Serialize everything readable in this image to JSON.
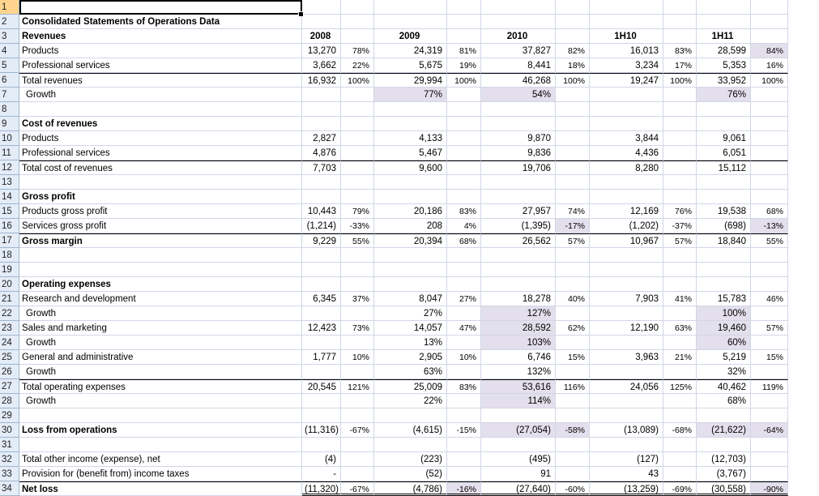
{
  "rows": [
    {
      "n": "1",
      "label": "",
      "style": "",
      "cells": [
        "",
        "",
        "",
        "",
        "",
        "",
        "",
        "",
        "",
        ""
      ],
      "hl": []
    },
    {
      "n": "2",
      "label": "Consolidated Statements of Operations Data",
      "style": "bold",
      "cells": [
        "",
        "",
        "",
        "",
        "",
        "",
        "",
        "",
        "",
        ""
      ],
      "hl": []
    },
    {
      "n": "3",
      "label": "Revenues",
      "style": "bold",
      "cells": [
        "2008",
        "",
        "2009",
        "",
        "2010",
        "",
        "1H10",
        "",
        "1H11",
        ""
      ],
      "hl": [],
      "header": true
    },
    {
      "n": "4",
      "label": "Products",
      "style": "",
      "cells": [
        "13,270",
        "78%",
        "24,319",
        "81%",
        "37,827",
        "82%",
        "16,013",
        "83%",
        "28,599",
        "84%"
      ],
      "hl": [
        9
      ]
    },
    {
      "n": "5",
      "label": "Professional services",
      "style": "",
      "cells": [
        "3,662",
        "22%",
        "5,675",
        "19%",
        "8,441",
        "18%",
        "3,234",
        "17%",
        "5,353",
        "16%"
      ],
      "hl": []
    },
    {
      "n": "6",
      "label": "Total revenues",
      "style": "",
      "cells": [
        "16,932",
        "100%",
        "29,994",
        "100%",
        "46,268",
        "100%",
        "19,247",
        "100%",
        "33,952",
        "100%"
      ],
      "hl": [],
      "topline": true
    },
    {
      "n": "7",
      "label": "Growth",
      "style": "indent",
      "cells": [
        "",
        "",
        "77%",
        "",
        "54%",
        "",
        "",
        "",
        "76%",
        ""
      ],
      "hl": [
        2,
        4,
        8
      ]
    },
    {
      "n": "8",
      "label": "",
      "style": "",
      "cells": [
        "",
        "",
        "",
        "",
        "",
        "",
        "",
        "",
        "",
        ""
      ],
      "hl": []
    },
    {
      "n": "9",
      "label": "Cost of revenues",
      "style": "bold",
      "cells": [
        "",
        "",
        "",
        "",
        "",
        "",
        "",
        "",
        "",
        ""
      ],
      "hl": []
    },
    {
      "n": "10",
      "label": "Products",
      "style": "",
      "cells": [
        "2,827",
        "",
        "4,133",
        "",
        "9,870",
        "",
        "3,844",
        "",
        "9,061",
        ""
      ],
      "hl": []
    },
    {
      "n": "11",
      "label": "Professional services",
      "style": "",
      "cells": [
        "4,876",
        "",
        "5,467",
        "",
        "9,836",
        "",
        "4,436",
        "",
        "6,051",
        ""
      ],
      "hl": []
    },
    {
      "n": "12",
      "label": "Total cost of revenues",
      "style": "",
      "cells": [
        "7,703",
        "",
        "9,600",
        "",
        "19,706",
        "",
        "8,280",
        "",
        "15,112",
        ""
      ],
      "hl": [],
      "topline": true
    },
    {
      "n": "13",
      "label": "",
      "style": "",
      "cells": [
        "",
        "",
        "",
        "",
        "",
        "",
        "",
        "",
        "",
        ""
      ],
      "hl": []
    },
    {
      "n": "14",
      "label": "Gross profit",
      "style": "bold",
      "cells": [
        "",
        "",
        "",
        "",
        "",
        "",
        "",
        "",
        "",
        ""
      ],
      "hl": []
    },
    {
      "n": "15",
      "label": "Products gross profit",
      "style": "",
      "cells": [
        "10,443",
        "79%",
        "20,186",
        "83%",
        "27,957",
        "74%",
        "12,169",
        "76%",
        "19,538",
        "68%"
      ],
      "hl": []
    },
    {
      "n": "16",
      "label": "Services gross profit",
      "style": "",
      "cells": [
        "(1,214)",
        "-33%",
        "208",
        "4%",
        "(1,395)",
        "-17%",
        "(1,202)",
        "-37%",
        "(698)",
        "-13%"
      ],
      "hl": [
        5,
        9
      ]
    },
    {
      "n": "17",
      "label": "Gross margin",
      "style": "bold",
      "cells": [
        "9,229",
        "55%",
        "20,394",
        "68%",
        "26,562",
        "57%",
        "10,967",
        "57%",
        "18,840",
        "55%"
      ],
      "hl": [],
      "topline": true
    },
    {
      "n": "18",
      "label": "",
      "style": "",
      "cells": [
        "",
        "",
        "",
        "",
        "",
        "",
        "",
        "",
        "",
        ""
      ],
      "hl": []
    },
    {
      "n": "19",
      "label": "",
      "style": "",
      "cells": [
        "",
        "",
        "",
        "",
        "",
        "",
        "",
        "",
        "",
        ""
      ],
      "hl": []
    },
    {
      "n": "20",
      "label": "Operating expenses",
      "style": "bold",
      "cells": [
        "",
        "",
        "",
        "",
        "",
        "",
        "",
        "",
        "",
        ""
      ],
      "hl": []
    },
    {
      "n": "21",
      "label": "Research and development",
      "style": "",
      "cells": [
        "6,345",
        "37%",
        "8,047",
        "27%",
        "18,278",
        "40%",
        "7,903",
        "41%",
        "15,783",
        "46%"
      ],
      "hl": []
    },
    {
      "n": "22",
      "label": "Growth",
      "style": "indent",
      "cells": [
        "",
        "",
        "27%",
        "",
        "127%",
        "",
        "",
        "",
        "100%",
        ""
      ],
      "hl": [
        4,
        8
      ]
    },
    {
      "n": "23",
      "label": "Sales and marketing",
      "style": "",
      "cells": [
        "12,423",
        "73%",
        "14,057",
        "47%",
        "28,592",
        "62%",
        "12,190",
        "63%",
        "19,460",
        "57%"
      ],
      "hl": [
        4,
        8
      ]
    },
    {
      "n": "24",
      "label": "Growth",
      "style": "indent",
      "cells": [
        "",
        "",
        "13%",
        "",
        "103%",
        "",
        "",
        "",
        "60%",
        ""
      ],
      "hl": [
        4,
        8
      ]
    },
    {
      "n": "25",
      "label": "General and administrative",
      "style": "",
      "cells": [
        "1,777",
        "10%",
        "2,905",
        "10%",
        "6,746",
        "15%",
        "3,963",
        "21%",
        "5,219",
        "15%"
      ],
      "hl": []
    },
    {
      "n": "26",
      "label": "Growth",
      "style": "indent",
      "cells": [
        "",
        "",
        "63%",
        "",
        "132%",
        "",
        "",
        "",
        "32%",
        ""
      ],
      "hl": []
    },
    {
      "n": "27",
      "label": "Total operating expenses",
      "style": "",
      "cells": [
        "20,545",
        "121%",
        "25,009",
        "83%",
        "53,616",
        "116%",
        "24,056",
        "125%",
        "40,462",
        "119%"
      ],
      "hl": [
        4
      ],
      "topline": true
    },
    {
      "n": "28",
      "label": "Growth",
      "style": "indent",
      "cells": [
        "",
        "",
        "22%",
        "",
        "114%",
        "",
        "",
        "",
        "68%",
        ""
      ],
      "hl": [
        4
      ]
    },
    {
      "n": "29",
      "label": "",
      "style": "",
      "cells": [
        "",
        "",
        "",
        "",
        "",
        "",
        "",
        "",
        "",
        ""
      ],
      "hl": []
    },
    {
      "n": "30",
      "label": "Loss from operations",
      "style": "bold",
      "cells": [
        "(11,316)",
        "-67%",
        "(4,615)",
        "-15%",
        "(27,054)",
        "-58%",
        "(13,089)",
        "-68%",
        "(21,622)",
        "-64%"
      ],
      "hl": [
        4,
        5,
        8,
        9
      ],
      "boxed": true
    },
    {
      "n": "31",
      "label": "",
      "style": "",
      "cells": [
        "",
        "",
        "",
        "",
        "",
        "",
        "",
        "",
        "",
        ""
      ],
      "hl": []
    },
    {
      "n": "32",
      "label": "Total other income (expense), net",
      "style": "",
      "cells": [
        "(4)",
        "",
        "(223)",
        "",
        "(495)",
        "",
        "(127)",
        "",
        "(12,703)",
        ""
      ],
      "hl": []
    },
    {
      "n": "33",
      "label": "Provision for (benefit from) income taxes",
      "style": "",
      "cells": [
        "-",
        "",
        "(52)",
        "",
        "91",
        "",
        "43",
        "",
        "(3,767)",
        ""
      ],
      "hl": []
    },
    {
      "n": "34",
      "label": "Net loss",
      "style": "bold",
      "cells": [
        "(11,320)",
        "-67%",
        "(4,786)",
        "-16%",
        "(27,640)",
        "-60%",
        "(13,259)",
        "-69%",
        "(30,558)",
        "-90%"
      ],
      "hl": [
        3,
        9
      ],
      "topline": true,
      "doubleline": true
    }
  ]
}
